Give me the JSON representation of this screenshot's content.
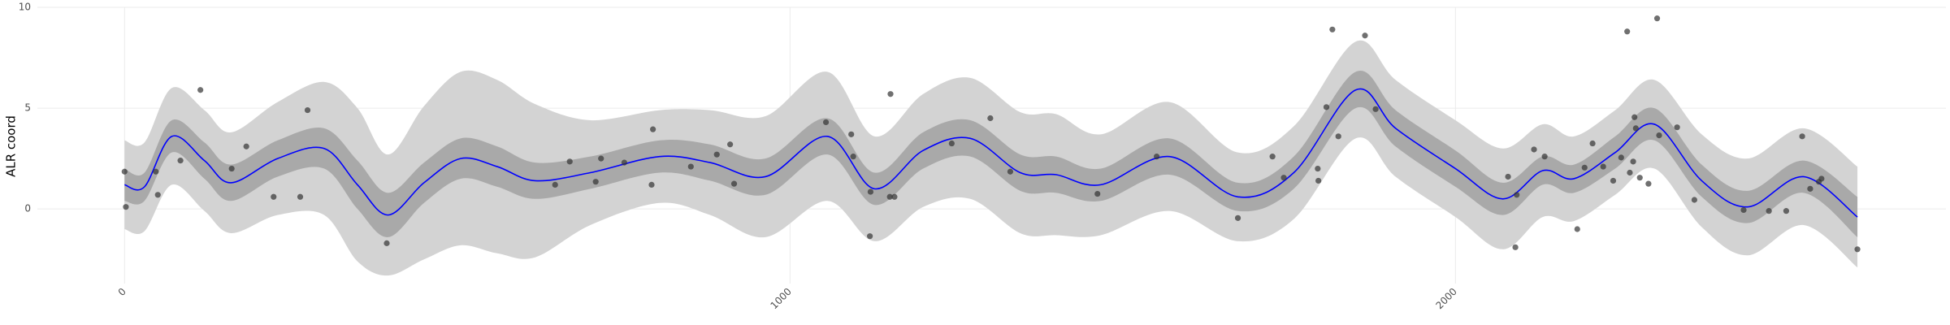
{
  "chart_data": {
    "type": "line",
    "y_label": "ALR coord",
    "xlim": [
      -131,
      2737
    ],
    "ylim": [
      -3.7,
      10
    ],
    "xticks": [
      0,
      1000,
      2000
    ],
    "yticks": [
      0,
      5,
      10
    ],
    "grid": true,
    "line_color": "#0000ff",
    "inner_band_color": "#a9a9a9",
    "outer_band_color": "#d3d3d3",
    "point_color": "#333333",
    "x": [
      0,
      30,
      71,
      120,
      160,
      230,
      300,
      350,
      396,
      450,
      505,
      560,
      617,
      700,
      804,
      880,
      963,
      1056,
      1127,
      1200,
      1271,
      1346,
      1400,
      1467,
      1570,
      1673,
      1757,
      1850,
      1910,
      2000,
      2071,
      2131,
      2178,
      2240,
      2299,
      2370,
      2439,
      2523,
      2604
    ],
    "mean": [
      1.2,
      1.1,
      3.6,
      2.4,
      1.3,
      2.5,
      3.0,
      1.2,
      -0.3,
      1.3,
      2.5,
      2.1,
      1.4,
      1.8,
      2.6,
      2.3,
      1.6,
      3.6,
      1.0,
      2.9,
      3.5,
      1.8,
      1.7,
      1.2,
      2.6,
      0.6,
      1.8,
      5.9,
      4.0,
      2.0,
      0.5,
      1.9,
      1.5,
      2.8,
      4.2,
      1.4,
      0.1,
      1.6,
      -0.4
    ],
    "inner_lower": [
      0.4,
      0.4,
      2.8,
      1.5,
      0.4,
      1.6,
      2.0,
      0.0,
      -1.4,
      0.3,
      1.5,
      1.1,
      0.5,
      1.0,
      1.8,
      1.4,
      0.7,
      2.7,
      0.2,
      2.0,
      2.6,
      0.9,
      0.8,
      0.4,
      1.7,
      -0.1,
      1.0,
      5.0,
      3.1,
      1.1,
      -0.3,
      1.2,
      0.8,
      2.0,
      3.4,
      0.6,
      -0.7,
      0.8,
      -1.4
    ],
    "inner_upper": [
      2.0,
      1.8,
      4.4,
      3.3,
      2.2,
      3.4,
      4.0,
      2.4,
      0.8,
      2.3,
      3.5,
      3.1,
      2.3,
      2.6,
      3.4,
      3.2,
      2.5,
      4.5,
      1.8,
      3.8,
      4.4,
      2.7,
      2.6,
      2.0,
      3.5,
      1.3,
      2.6,
      6.8,
      4.9,
      2.9,
      1.3,
      2.6,
      2.2,
      3.6,
      5.0,
      2.2,
      0.9,
      2.4,
      0.6
    ],
    "outer_lower": [
      -1.0,
      -1.1,
      1.2,
      -0.1,
      -1.2,
      -0.3,
      -0.3,
      -2.6,
      -3.3,
      -2.5,
      -1.8,
      -2.2,
      -2.4,
      -0.8,
      0.3,
      -0.3,
      -1.4,
      0.4,
      -1.6,
      0.1,
      0.5,
      -1.2,
      -1.3,
      -1.3,
      -0.1,
      -1.6,
      -0.5,
      3.5,
      1.6,
      -0.4,
      -2.0,
      -0.4,
      -0.6,
      0.7,
      2.0,
      -0.9,
      -2.3,
      -0.8,
      -2.9
    ],
    "outer_upper": [
      3.4,
      3.3,
      6.0,
      4.9,
      3.8,
      5.3,
      6.3,
      5.0,
      2.7,
      5.1,
      6.8,
      6.4,
      5.2,
      4.4,
      4.9,
      4.9,
      4.6,
      6.8,
      3.6,
      5.7,
      6.5,
      4.8,
      4.7,
      3.7,
      5.3,
      2.8,
      4.1,
      8.3,
      6.4,
      4.4,
      3.0,
      4.2,
      3.6,
      4.9,
      6.4,
      3.7,
      2.5,
      4.0,
      2.1
    ],
    "points": {
      "x": [
        0,
        2,
        47,
        50,
        84,
        114,
        161,
        183,
        224,
        264,
        275,
        394,
        647,
        669,
        708,
        716,
        751,
        792,
        794,
        851,
        890,
        910,
        916,
        1054,
        1092,
        1095,
        1120,
        1121,
        1150,
        1151,
        1157,
        1243,
        1301,
        1331,
        1462,
        1551,
        1673,
        1725,
        1742,
        1793,
        1794,
        1806,
        1815,
        1824,
        1864,
        1880,
        2079,
        2090,
        2092,
        2118,
        2134,
        2183,
        2194,
        2206,
        2222,
        2237,
        2249,
        2258,
        2262,
        2267,
        2269,
        2271,
        2277,
        2290,
        2303,
        2306,
        2333,
        2359,
        2433,
        2471,
        2497,
        2521,
        2533,
        2546,
        2550,
        2604
      ],
      "y": [
        1.85,
        0.1,
        1.85,
        0.7,
        2.4,
        5.9,
        2.0,
        3.1,
        0.6,
        0.6,
        4.9,
        -1.7,
        1.2,
        2.35,
        1.35,
        2.5,
        2.3,
        1.2,
        3.95,
        2.1,
        2.7,
        3.2,
        1.25,
        4.3,
        3.7,
        2.6,
        -1.35,
        0.85,
        0.6,
        5.7,
        0.6,
        3.25,
        4.5,
        1.85,
        0.75,
        2.6,
        -0.45,
        2.6,
        1.55,
        2.0,
        1.4,
        5.05,
        8.9,
        3.6,
        8.6,
        4.95,
        1.6,
        -1.9,
        0.7,
        2.95,
        2.6,
        -1.0,
        2.05,
        3.25,
        2.1,
        1.4,
        2.55,
        8.8,
        1.8,
        2.35,
        4.55,
        4.0,
        1.55,
        1.25,
        9.45,
        3.65,
        4.05,
        0.45,
        -0.05,
        -0.1,
        -0.1,
        3.6,
        1.0,
        1.35,
        1.5,
        -2.0
      ]
    }
  }
}
